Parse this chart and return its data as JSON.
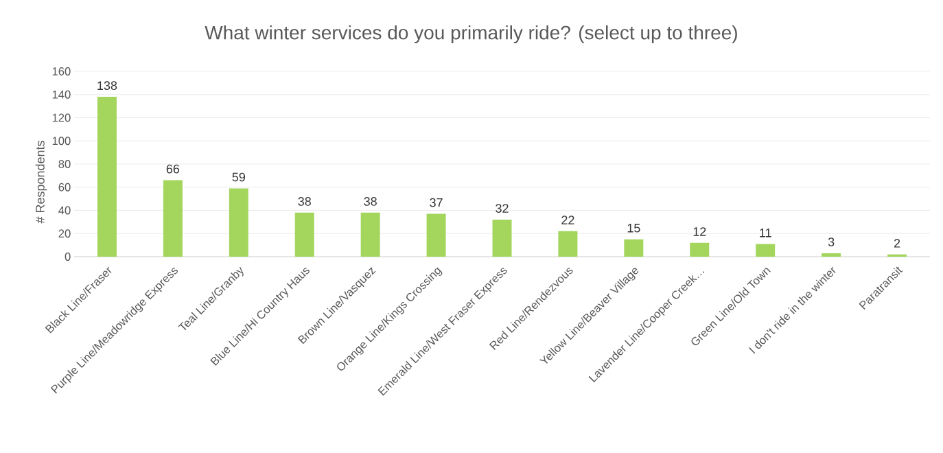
{
  "chart_data": {
    "type": "bar",
    "title": "What winter services do you primarily ride? (select up to three)",
    "ylabel": "# Respondents",
    "categories": [
      "Black Line/Fraser",
      "Purple Line/Meadowridge Express",
      "Teal Line/Granby",
      "Blue Line/Hi Country Haus",
      "Brown Line/Vasquez",
      "Orange Line/Kings Crossing",
      "Emerald Line/West Fraser Express",
      "Red Line/Rendezvous",
      "Yellow Line/Beaver Village",
      "Lavender Line/Cooper Creek…",
      "Green Line/Old Town",
      "I don't ride in the winter",
      "Paratransit"
    ],
    "values": [
      138,
      66,
      59,
      38,
      38,
      37,
      32,
      22,
      15,
      12,
      11,
      3,
      2
    ],
    "color": "#a4d65e",
    "ylim": [
      0,
      160
    ],
    "yticks": [
      0,
      20,
      40,
      60,
      80,
      100,
      120,
      140,
      160
    ],
    "grid": "y",
    "data_labels": true
  }
}
